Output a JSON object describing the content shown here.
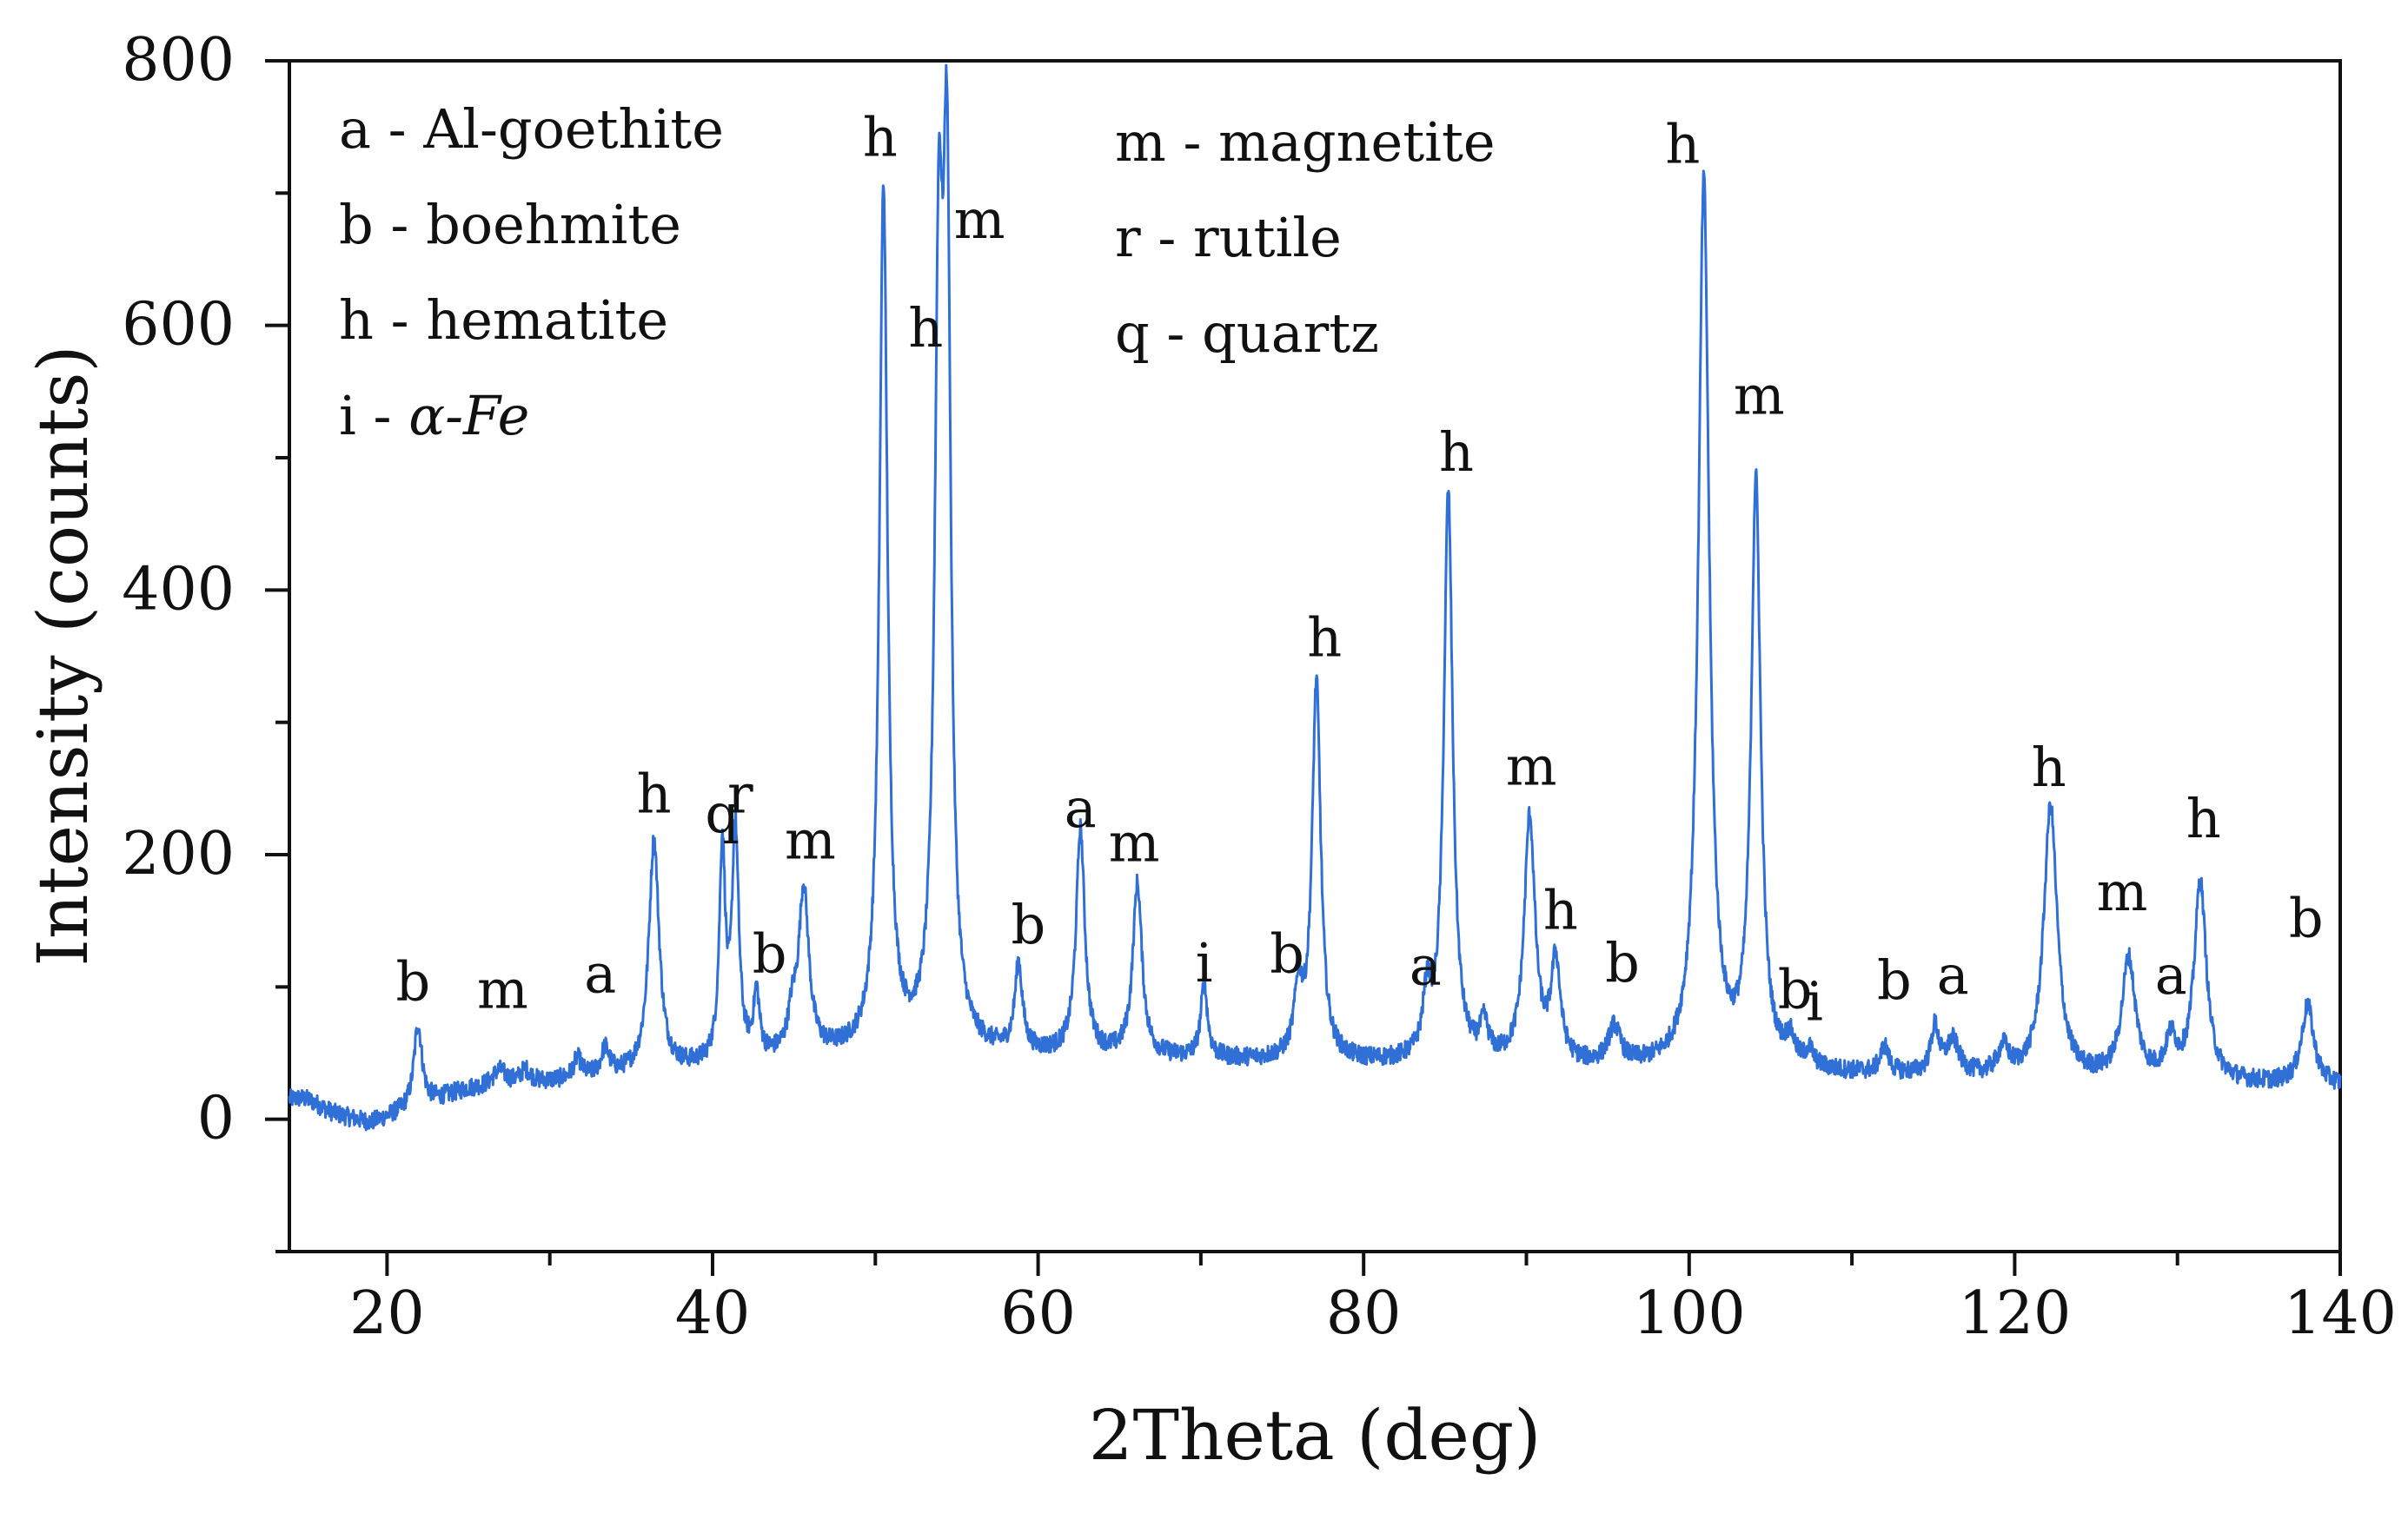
{
  "chart_data": {
    "type": "line",
    "title": "",
    "xlabel": "2Theta (deg)",
    "ylabel": "Intensity (counts)",
    "xlim": [
      14,
      140
    ],
    "ylim": [
      -100,
      800
    ],
    "xticks": [
      20,
      40,
      60,
      80,
      100,
      120,
      140
    ],
    "yticks": [
      0,
      200,
      400,
      600,
      800
    ],
    "grid": false,
    "line_color": "#2f6fd6",
    "legend_left": [
      {
        "key": "a",
        "name": "Al-goethite"
      },
      {
        "key": "b",
        "name": "boehmite"
      },
      {
        "key": "h",
        "name": "hematite"
      },
      {
        "key": "i",
        "name": "α-Fe"
      }
    ],
    "legend_right": [
      {
        "key": "m",
        "name": "magnetite"
      },
      {
        "key": "r",
        "name": "rutile"
      },
      {
        "key": "q",
        "name": "quartz"
      }
    ],
    "peaks": [
      {
        "x": 21.9,
        "y": 62,
        "w": 0.3,
        "label": "b"
      },
      {
        "x": 26.9,
        "y": 12,
        "w": 0.5,
        "label": "m"
      },
      {
        "x": 33.4,
        "y": 20,
        "w": 0.3,
        "label": "a"
      },
      {
        "x": 36.4,
        "y": 175,
        "w": 0.38,
        "label": "h"
      },
      {
        "x": 40.6,
        "y": 160,
        "w": 0.22,
        "label": "q"
      },
      {
        "x": 41.4,
        "y": 172,
        "w": 0.25,
        "label": "r"
      },
      {
        "x": 42.7,
        "y": 48,
        "w": 0.22,
        "label": "b"
      },
      {
        "x": 45.6,
        "y": 125,
        "w": 0.38,
        "label": "m"
      },
      {
        "x": 50.5,
        "y": 650,
        "w": 0.3,
        "label": "h"
      },
      {
        "x": 53.9,
        "y": 540,
        "w": 0.3,
        "label": "h"
      },
      {
        "x": 54.4,
        "y": 590,
        "w": 0.28,
        "label": "m"
      },
      {
        "x": 58.8,
        "y": 65,
        "w": 0.28,
        "label": "b"
      },
      {
        "x": 62.6,
        "y": 170,
        "w": 0.32,
        "label": "a"
      },
      {
        "x": 66.1,
        "y": 130,
        "w": 0.34,
        "label": "m"
      },
      {
        "x": 70.2,
        "y": 55,
        "w": 0.25,
        "label": "i"
      },
      {
        "x": 76.0,
        "y": 50,
        "w": 0.3,
        "label": "b"
      },
      {
        "x": 77.1,
        "y": 285,
        "w": 0.32,
        "label": "h"
      },
      {
        "x": 83.9,
        "y": 45,
        "w": 0.3,
        "label": "a"
      },
      {
        "x": 85.2,
        "y": 430,
        "w": 0.33,
        "label": "h"
      },
      {
        "x": 90.2,
        "y": 185,
        "w": 0.4,
        "label": "m"
      },
      {
        "x": 91.8,
        "y": 75,
        "w": 0.35,
        "label": "h"
      },
      {
        "x": 95.4,
        "y": 28,
        "w": 0.45,
        "label": "b"
      },
      {
        "x": 100.9,
        "y": 670,
        "w": 0.4,
        "label": "h"
      },
      {
        "x": 104.1,
        "y": 440,
        "w": 0.35,
        "label": "m"
      },
      {
        "x": 106.2,
        "y": 18,
        "w": 0.35,
        "label": "b"
      },
      {
        "x": 107.4,
        "y": 12,
        "w": 0.3,
        "label": "i"
      },
      {
        "x": 112.0,
        "y": 20,
        "w": 0.3,
        "label": "b"
      },
      {
        "x": 116.2,
        "y": 25,
        "w": 0.45,
        "label": "a"
      },
      {
        "x": 122.2,
        "y": 205,
        "w": 0.5,
        "label": "h"
      },
      {
        "x": 127.0,
        "y": 90,
        "w": 0.5,
        "label": "m"
      },
      {
        "x": 129.6,
        "y": 28,
        "w": 0.4,
        "label": "a"
      },
      {
        "x": 131.4,
        "y": 150,
        "w": 0.45,
        "label": "h"
      },
      {
        "x": 138.0,
        "y": 60,
        "w": 0.45,
        "label": "b"
      }
    ],
    "extra_peaks": [
      {
        "x": 28.5,
        "y": 10,
        "w": 0.4
      },
      {
        "x": 31.7,
        "y": 15,
        "w": 0.3
      },
      {
        "x": 44.9,
        "y": 25,
        "w": 0.3
      },
      {
        "x": 87.4,
        "y": 25,
        "w": 0.3
      },
      {
        "x": 115.1,
        "y": 35,
        "w": 0.3
      },
      {
        "x": 119.3,
        "y": 20,
        "w": 0.4
      }
    ],
    "annotations": [
      {
        "text": "b",
        "x": 21.6,
        "y": 90
      },
      {
        "text": "m",
        "x": 27.1,
        "y": 84
      },
      {
        "text": "a",
        "x": 33.1,
        "y": 96
      },
      {
        "text": "h",
        "x": 36.4,
        "y": 232
      },
      {
        "text": "q",
        "x": 40.6,
        "y": 217
      },
      {
        "text": "r",
        "x": 41.7,
        "y": 232
      },
      {
        "text": "b",
        "x": 43.5,
        "y": 111
      },
      {
        "text": "m",
        "x": 46.0,
        "y": 197
      },
      {
        "text": "h",
        "x": 50.3,
        "y": 728
      },
      {
        "text": "h",
        "x": 53.1,
        "y": 584
      },
      {
        "text": "m",
        "x": 56.4,
        "y": 666
      },
      {
        "text": "b",
        "x": 59.4,
        "y": 133
      },
      {
        "text": "a",
        "x": 62.6,
        "y": 221
      },
      {
        "text": "m",
        "x": 65.9,
        "y": 195
      },
      {
        "text": "i",
        "x": 70.2,
        "y": 104
      },
      {
        "text": "b",
        "x": 75.3,
        "y": 111
      },
      {
        "text": "h",
        "x": 77.6,
        "y": 350
      },
      {
        "text": "a",
        "x": 83.8,
        "y": 102
      },
      {
        "text": "h",
        "x": 85.7,
        "y": 490
      },
      {
        "text": "m",
        "x": 90.3,
        "y": 253
      },
      {
        "text": "h",
        "x": 92.1,
        "y": 144
      },
      {
        "text": "b",
        "x": 95.9,
        "y": 104
      },
      {
        "text": "h",
        "x": 99.6,
        "y": 723
      },
      {
        "text": "m",
        "x": 104.3,
        "y": 533
      },
      {
        "text": "b",
        "x": 106.5,
        "y": 84
      },
      {
        "text": "i",
        "x": 107.7,
        "y": 75
      },
      {
        "text": "b",
        "x": 112.6,
        "y": 91
      },
      {
        "text": "a",
        "x": 116.2,
        "y": 95
      },
      {
        "text": "h",
        "x": 122.1,
        "y": 252
      },
      {
        "text": "m",
        "x": 126.6,
        "y": 158
      },
      {
        "text": "a",
        "x": 129.6,
        "y": 95
      },
      {
        "text": "h",
        "x": 131.6,
        "y": 213
      },
      {
        "text": "b",
        "x": 137.9,
        "y": 138
      }
    ]
  }
}
